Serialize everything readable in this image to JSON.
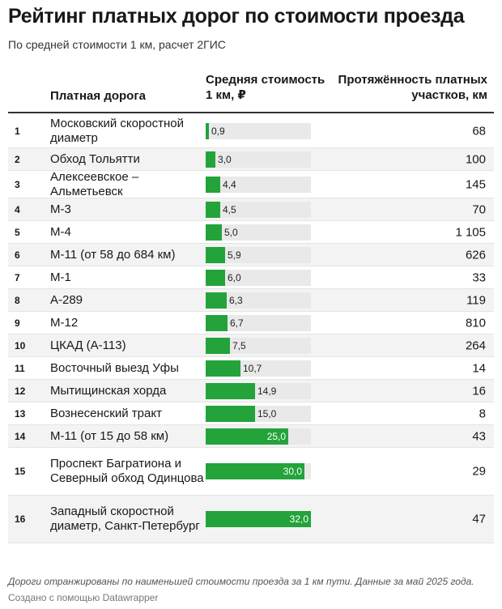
{
  "title": "Рейтинг платных дорог по стоимости проезда",
  "subtitle": "По средней стоимости 1 км, расчет 2ГИС",
  "header": {
    "road": "Платная дорога",
    "cost": "Средняя стоимость 1 км, ₽",
    "length": "Протяжённость платных участков, км"
  },
  "colors": {
    "bar": "#23a33a",
    "track": "#e9e9e9"
  },
  "chart_data": {
    "type": "table",
    "title": "Рейтинг платных дорог по стоимости проезда",
    "columns": [
      "#",
      "Платная дорога",
      "Средняя стоимость 1 км, ₽",
      "Протяжённость платных участков, км"
    ],
    "bar_max": 32.0,
    "rows": [
      {
        "rank": "1",
        "road": "Московский скоростной диаметр",
        "cost": 0.9,
        "cost_label": "0,9",
        "length": "68"
      },
      {
        "rank": "2",
        "road": "Обход Тольятти",
        "cost": 3.0,
        "cost_label": "3,0",
        "length": "100"
      },
      {
        "rank": "3",
        "road": "Алексеевское – Альметьевск",
        "cost": 4.4,
        "cost_label": "4,4",
        "length": "145"
      },
      {
        "rank": "4",
        "road": "М-3",
        "cost": 4.5,
        "cost_label": "4,5",
        "length": "70"
      },
      {
        "rank": "5",
        "road": "М-4",
        "cost": 5.0,
        "cost_label": "5,0",
        "length": "1 105"
      },
      {
        "rank": "6",
        "road": "М-11 (от 58 до 684 км)",
        "cost": 5.9,
        "cost_label": "5,9",
        "length": "626"
      },
      {
        "rank": "7",
        "road": "М-1",
        "cost": 6.0,
        "cost_label": "6,0",
        "length": "33"
      },
      {
        "rank": "8",
        "road": "А-289",
        "cost": 6.3,
        "cost_label": "6,3",
        "length": "119"
      },
      {
        "rank": "9",
        "road": "М-12",
        "cost": 6.7,
        "cost_label": "6,7",
        "length": "810"
      },
      {
        "rank": "10",
        "road": "ЦКАД (А-113)",
        "cost": 7.5,
        "cost_label": "7,5",
        "length": "264"
      },
      {
        "rank": "11",
        "road": "Восточный выезд Уфы",
        "cost": 10.7,
        "cost_label": "10,7",
        "length": "14"
      },
      {
        "rank": "12",
        "road": "Мытищинская хорда",
        "cost": 14.9,
        "cost_label": "14,9",
        "length": "16"
      },
      {
        "rank": "13",
        "road": "Вознесенский тракт",
        "cost": 15.0,
        "cost_label": "15,0",
        "length": "8"
      },
      {
        "rank": "14",
        "road": "М-11 (от 15 до 58 км)",
        "cost": 25.0,
        "cost_label": "25,0",
        "length": "43"
      },
      {
        "rank": "15",
        "road": "Проспект Багратиона и Северный обход Одинцова",
        "cost": 30.0,
        "cost_label": "30,0",
        "length": "29"
      },
      {
        "rank": "16",
        "road": "Западный скоростной диаметр, Санкт-Петербург",
        "cost": 32.0,
        "cost_label": "32,0",
        "length": "47"
      }
    ]
  },
  "footer": {
    "note": "Дороги отранжированы по наименьшей стоимости проезда за 1 км пути. Данные за май 2025 года.",
    "credit": "Создано с помощью Datawrapper"
  }
}
